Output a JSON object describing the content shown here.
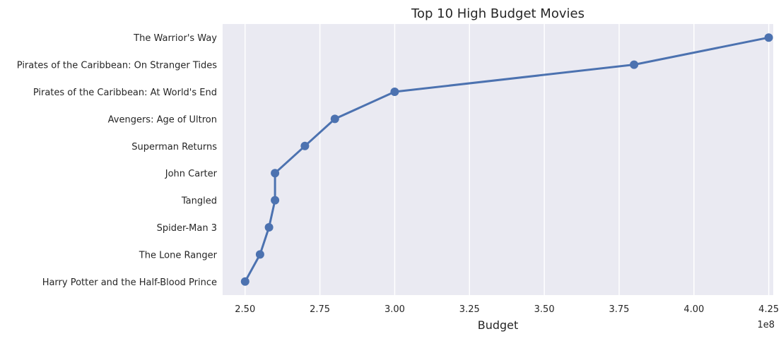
{
  "chart_data": {
    "type": "line",
    "title": "Top 10 High Budget Movies",
    "xlabel": "Budget",
    "ylabel": "",
    "x_offset_label": "1e8",
    "xlim": [
      2.425,
      4.265
    ],
    "x_ticks": [
      2.5,
      2.75,
      3.0,
      3.25,
      3.5,
      3.75,
      4.0,
      4.25
    ],
    "x_tick_labels": [
      "2.50",
      "2.75",
      "3.00",
      "3.25",
      "3.50",
      "3.75",
      "4.00",
      "4.25"
    ],
    "categories": [
      "The Warrior's Way",
      "Pirates of the Caribbean: On Stranger Tides",
      "Pirates of the Caribbean: At World's End",
      "Avengers: Age of Ultron",
      "Superman Returns",
      "John Carter",
      "Tangled",
      "Spider-Man 3",
      "The Lone Ranger",
      "Harry Potter and the Half-Blood Prince"
    ],
    "series": [
      {
        "values": [
          4.25,
          3.8,
          3.0,
          2.8,
          2.7,
          2.6,
          2.6,
          2.58,
          2.55,
          2.5
        ]
      }
    ],
    "grid": true,
    "legend": "none",
    "colors": {
      "line": "#4c72b0",
      "plot_background": "#eaeaf2",
      "grid": "#ffffff"
    }
  }
}
